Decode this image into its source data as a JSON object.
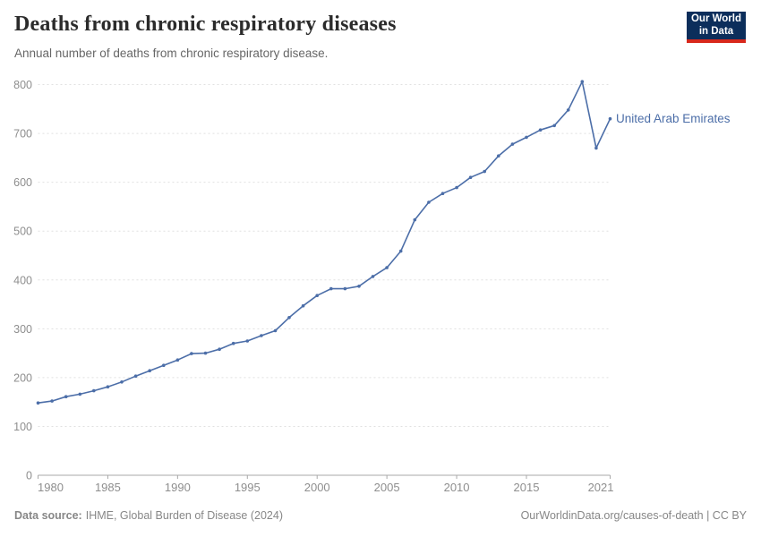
{
  "header": {
    "title": "Deaths from chronic respiratory diseases",
    "subtitle": "Annual number of deaths from chronic respiratory disease.",
    "logo": {
      "line1": "Our World",
      "line2": "in Data"
    }
  },
  "chart_data": {
    "type": "line",
    "title": "Deaths from chronic respiratory diseases",
    "subtitle": "Annual number of deaths from chronic respiratory disease.",
    "xlabel": "",
    "ylabel": "",
    "xlim": [
      1980,
      2021
    ],
    "ylim": [
      0,
      800
    ],
    "xticks": [
      1980,
      1985,
      1990,
      1995,
      2000,
      2005,
      2010,
      2015,
      2021
    ],
    "yticks": [
      0,
      100,
      200,
      300,
      400,
      500,
      600,
      700,
      800
    ],
    "grid": "horizontal-dashed",
    "legend_position": "end-of-line-label",
    "series": [
      {
        "name": "United Arab Emirates",
        "color": "#4C6EA8",
        "x": [
          1980,
          1981,
          1982,
          1983,
          1984,
          1985,
          1986,
          1987,
          1988,
          1989,
          1990,
          1991,
          1992,
          1993,
          1994,
          1995,
          1996,
          1997,
          1998,
          1999,
          2000,
          2001,
          2002,
          2003,
          2004,
          2005,
          2006,
          2007,
          2008,
          2009,
          2010,
          2011,
          2012,
          2013,
          2014,
          2015,
          2016,
          2017,
          2018,
          2019,
          2020,
          2021
        ],
        "values": [
          148,
          152,
          161,
          166,
          173,
          181,
          191,
          203,
          214,
          225,
          236,
          249,
          250,
          258,
          270,
          275,
          286,
          296,
          323,
          347,
          368,
          382,
          382,
          387,
          407,
          425,
          459,
          523,
          559,
          577,
          589,
          610,
          622,
          654,
          678,
          692,
          707,
          716,
          748,
          806,
          670,
          730
        ]
      }
    ]
  },
  "footer": {
    "source_label": "Data source:",
    "source_text": "IHME, Global Burden of Disease (2024)",
    "credit": "OurWorldinData.org/causes-of-death | CC BY"
  },
  "colors": {
    "line": "#4C6EA8",
    "grid": "#e0e0e0",
    "axis": "#a8a8a8",
    "tick_label": "#8e8e8e",
    "logo_bg": "#0c2e5b",
    "logo_bar": "#d8281c"
  }
}
